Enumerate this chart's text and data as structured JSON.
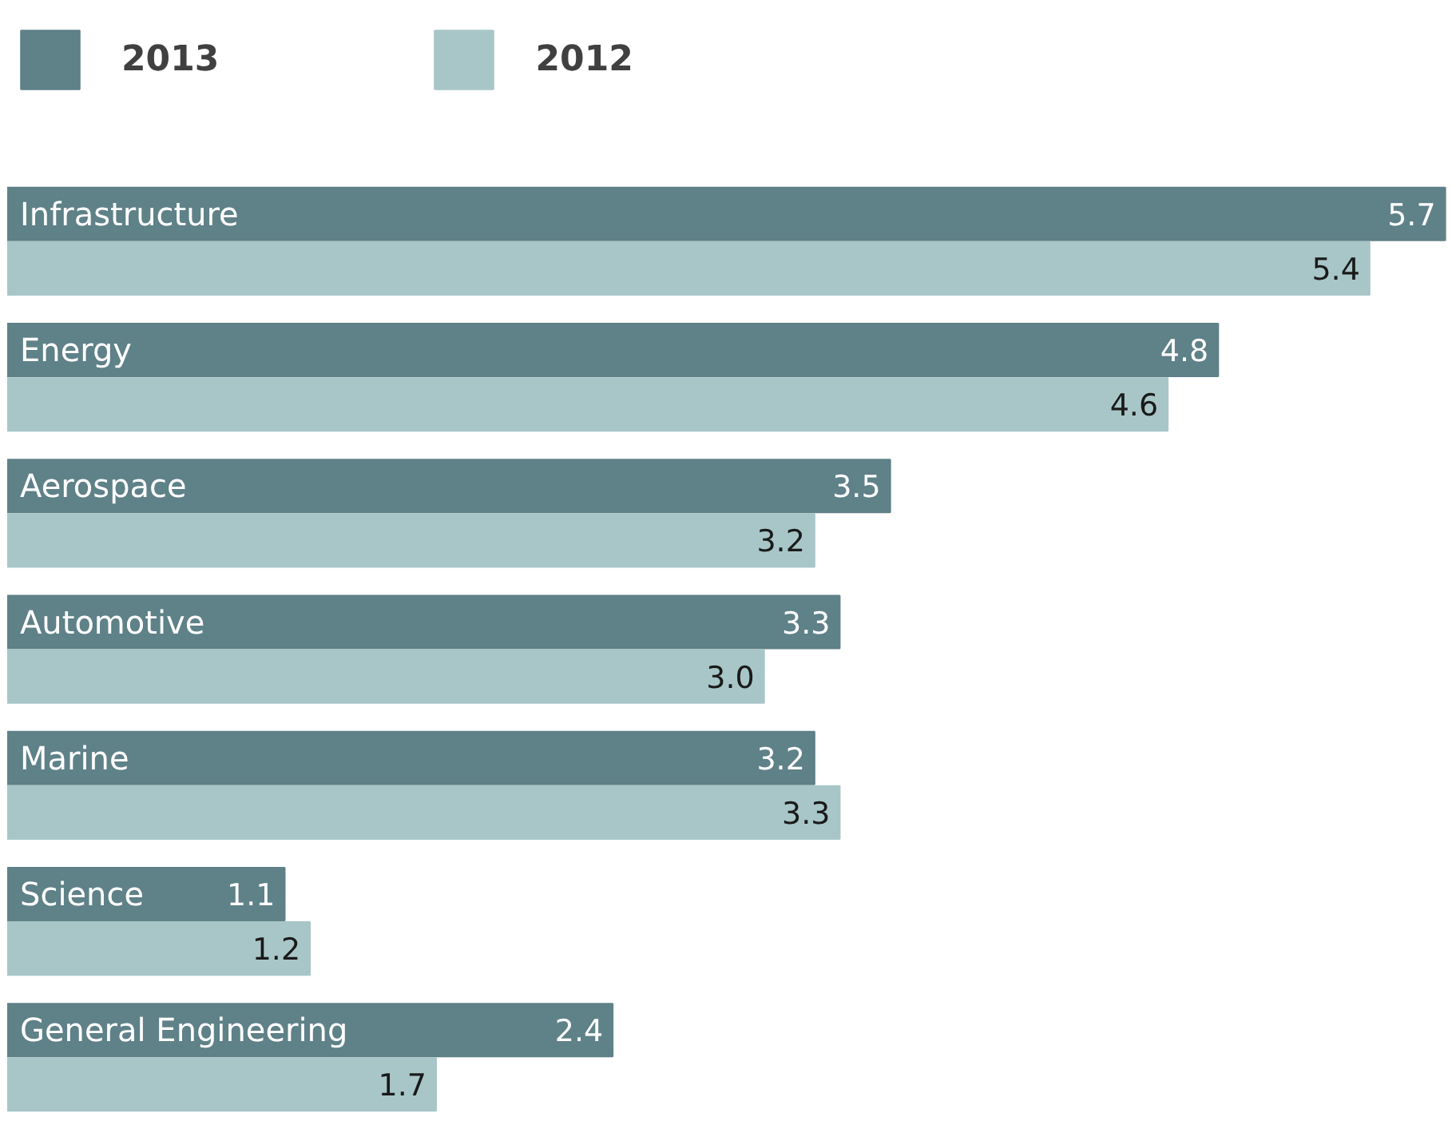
{
  "chart_data": {
    "type": "bar",
    "orientation": "horizontal",
    "categories": [
      "Infrastructure",
      "Energy",
      "Aerospace",
      "Automotive",
      "Marine",
      "Science",
      "General Engineering"
    ],
    "series": [
      {
        "name": "2013",
        "color": "#5f8188",
        "values": [
          5.7,
          4.8,
          3.5,
          3.3,
          3.2,
          1.1,
          2.4
        ]
      },
      {
        "name": "2012",
        "color": "#a8c6c8",
        "values": [
          5.4,
          4.6,
          3.2,
          3.0,
          3.3,
          1.2,
          1.7
        ],
        "value_labels": [
          "5.4",
          "4.6",
          "3.2",
          "3.0",
          "3.3",
          "1.2",
          "1.7"
        ]
      }
    ],
    "data_labels": true,
    "legend": "top left"
  }
}
